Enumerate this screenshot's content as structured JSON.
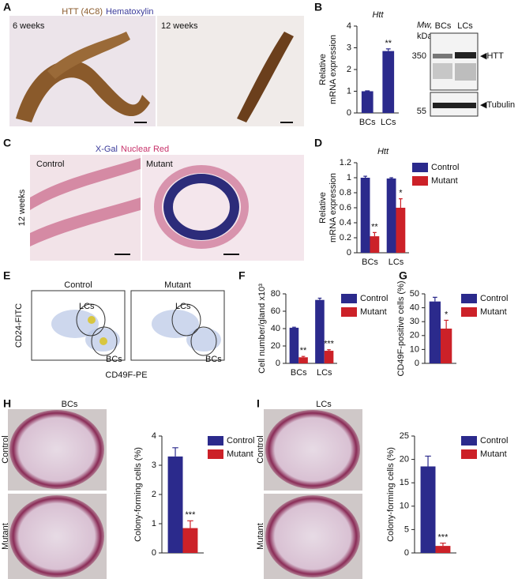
{
  "figure": {
    "panel_labels": [
      "A",
      "B",
      "C",
      "D",
      "E",
      "F",
      "G",
      "H",
      "I"
    ],
    "a": {
      "stain": "HTT (4C8)",
      "counterstain": "Hematoxylin",
      "left": "6 weeks",
      "right": "12 weeks"
    },
    "blot": {
      "mw": "Mw,",
      "kda": "kDa",
      "lanes": [
        "BCs",
        "LCs"
      ],
      "markers": [
        "350",
        "55"
      ],
      "bands": [
        "◀HTT",
        "◀Tubulin"
      ]
    },
    "c": {
      "stain": "X-Gal",
      "counterstain": "Nuclear Red",
      "left": "Control",
      "right": "Mutant",
      "age": "12 weeks"
    },
    "e": {
      "left": "Control",
      "right": "Mutant",
      "gates": [
        "LCs",
        "BCs"
      ],
      "ylabel": "CD24-FITC",
      "xlabel": "CD49F-PE"
    },
    "h": {
      "title": "BCs",
      "rows": [
        "Control",
        "Mutant"
      ]
    },
    "i": {
      "title": "LCs",
      "rows": [
        "Control",
        "Mutant"
      ]
    }
  },
  "chart_data": [
    {
      "type": "bar",
      "title": "Htt",
      "ylabel": [
        "Relative",
        "mRNA expression"
      ],
      "categories": [
        "BCs",
        "LCs"
      ],
      "values": [
        1,
        2.85
      ],
      "errors": [
        0.02,
        0.1
      ],
      "significance": [
        null,
        "**"
      ],
      "color": "#2b2a8c",
      "ylim": [
        0,
        4
      ],
      "yticks": [
        0,
        1,
        2,
        3,
        4
      ]
    },
    {
      "type": "bar",
      "title": "Htt",
      "ylabel": [
        "Relative",
        "mRNA expression"
      ],
      "categories": [
        "BCs",
        "LCs"
      ],
      "series": [
        {
          "name": "Control",
          "color": "#2b2a8c",
          "values": [
            1,
            0.99
          ],
          "errors": [
            0.02,
            0.01
          ]
        },
        {
          "name": "Mutant",
          "color": "#cc2128",
          "values": [
            0.22,
            0.6
          ],
          "errors": [
            0.05,
            0.12
          ],
          "significance": [
            "**",
            "*"
          ]
        }
      ],
      "ylim": [
        0,
        1.2
      ],
      "yticks": [
        0,
        0.2,
        0.4,
        0.6,
        0.8,
        1,
        1.2
      ]
    },
    {
      "type": "bar",
      "ylabel": [
        "Cell number/gland x10³"
      ],
      "categories": [
        "BCs",
        "LCs"
      ],
      "series": [
        {
          "name": "Control",
          "color": "#2b2a8c",
          "values": [
            41,
            73
          ],
          "errors": [
            0.6,
            2
          ]
        },
        {
          "name": "Mutant",
          "color": "#cc2128",
          "values": [
            7,
            14.5
          ],
          "errors": [
            1,
            1.2
          ],
          "significance": [
            "**",
            "***"
          ]
        }
      ],
      "ylim": [
        0,
        80
      ],
      "yticks": [
        0,
        20,
        40,
        60,
        80
      ]
    },
    {
      "type": "bar",
      "ylabel": [
        "CD49F-positive cells (%)"
      ],
      "categories": [
        null
      ],
      "series": [
        {
          "name": "Control",
          "color": "#2b2a8c",
          "values": [
            44.5
          ],
          "errors": [
            3
          ]
        },
        {
          "name": "Mutant",
          "color": "#cc2128",
          "values": [
            25
          ],
          "errors": [
            6
          ],
          "significance": [
            "*"
          ]
        }
      ],
      "ylim": [
        0,
        50
      ],
      "yticks": [
        0,
        10,
        20,
        30,
        40,
        50
      ]
    },
    {
      "type": "bar",
      "ylabel": [
        "Colony-forming cells (%)"
      ],
      "categories": [
        null
      ],
      "series": [
        {
          "name": "Control",
          "color": "#2b2a8c",
          "values": [
            3.3
          ],
          "errors": [
            0.3
          ]
        },
        {
          "name": "Mutant",
          "color": "#cc2128",
          "values": [
            0.85
          ],
          "errors": [
            0.25
          ],
          "significance": [
            "***"
          ]
        }
      ],
      "ylim": [
        0,
        4
      ],
      "yticks": [
        0,
        1,
        2,
        3,
        4
      ]
    },
    {
      "type": "bar",
      "ylabel": [
        "Colony-forming cells (%)"
      ],
      "categories": [
        null
      ],
      "series": [
        {
          "name": "Control",
          "color": "#2b2a8c",
          "values": [
            18.5
          ],
          "errors": [
            2.2
          ]
        },
        {
          "name": "Mutant",
          "color": "#cc2128",
          "values": [
            1.5
          ],
          "errors": [
            0.6
          ],
          "significance": [
            "***"
          ]
        }
      ],
      "ylim": [
        0,
        25
      ],
      "yticks": [
        0,
        5,
        10,
        15,
        20,
        25
      ]
    }
  ]
}
